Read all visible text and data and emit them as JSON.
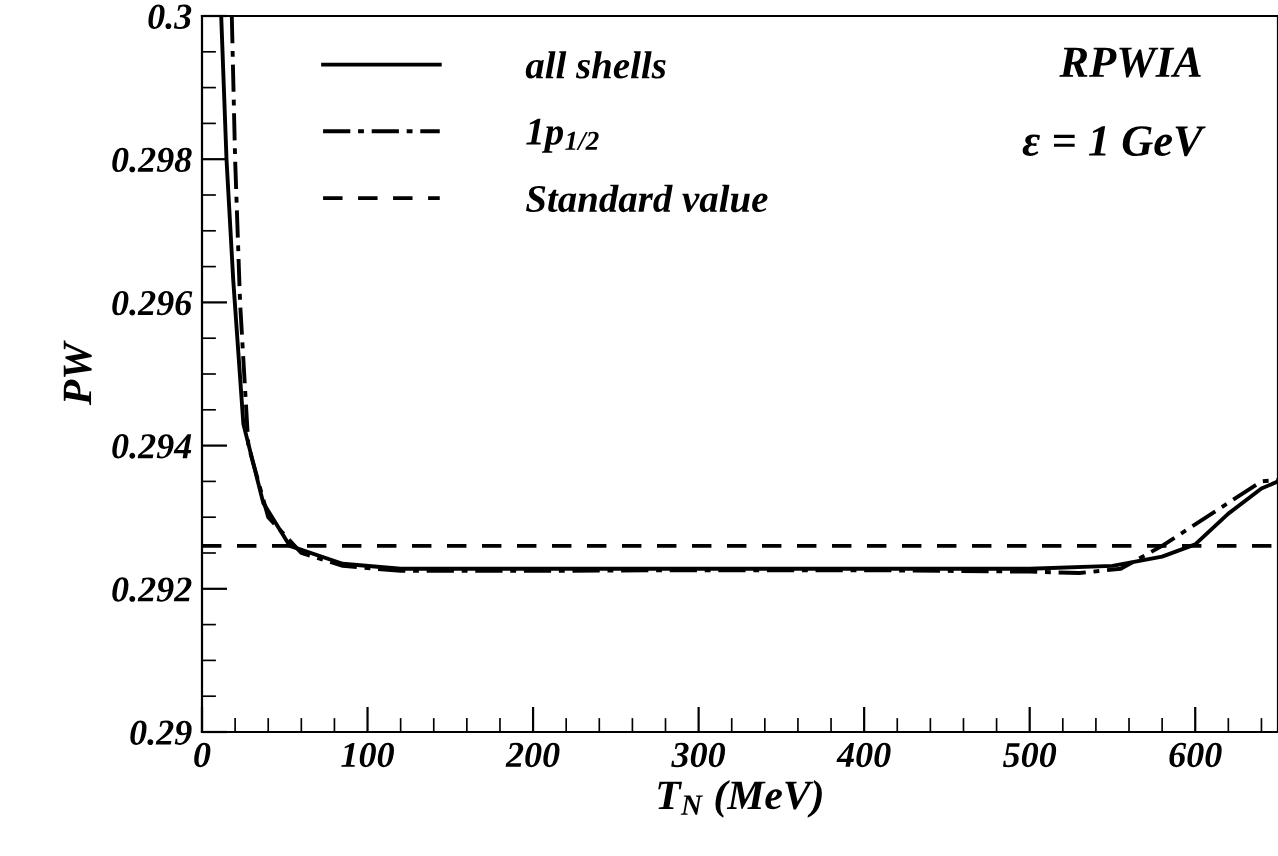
{
  "chart_data": {
    "type": "line",
    "xlabel": "T$_{N}$ (MeV)",
    "ylabel": "PW",
    "xlim": [
      0,
      650
    ],
    "ylim": [
      0.29,
      0.3
    ],
    "xticks": [
      0,
      100,
      200,
      300,
      400,
      500,
      600
    ],
    "yticks": [
      0.29,
      0.292,
      0.294,
      0.296,
      0.298,
      0.3
    ],
    "grid": false,
    "legend": "top left",
    "marker": "none",
    "annotations": [
      "RPWIA",
      "ε = 1 GeV"
    ],
    "series": [
      {
        "name": "all shells",
        "color": "#000000",
        "line_style": "solid",
        "x": [
          11.6,
          14.8,
          18.9,
          25,
          37,
          53,
          85,
          120,
          200,
          300,
          400,
          500,
          550,
          580,
          600,
          620,
          640,
          650
        ],
        "values": [
          0.3,
          0.298,
          0.2963,
          0.2943,
          0.2932,
          0.2926,
          0.29235,
          0.29228,
          0.29228,
          0.29228,
          0.29228,
          0.29228,
          0.29232,
          0.29245,
          0.29262,
          0.29305,
          0.2934,
          0.2935
        ]
      },
      {
        "name": "1p$_{1/2}$",
        "color": "#000000",
        "line_style": "dashdot",
        "x": [
          18,
          20,
          23,
          28,
          40,
          60,
          85,
          120,
          200,
          300,
          400,
          500,
          530,
          555,
          580,
          600,
          620,
          640,
          650
        ],
        "values": [
          0.3,
          0.298,
          0.296,
          0.294,
          0.293,
          0.2925,
          0.29232,
          0.29225,
          0.29225,
          0.29226,
          0.29226,
          0.29224,
          0.29222,
          0.29228,
          0.2926,
          0.2929,
          0.2932,
          0.2935,
          0.29352
        ]
      },
      {
        "name": "Standard value",
        "color": "#000000",
        "line_style": "dashed",
        "x": [
          0,
          650
        ],
        "values": [
          0.2926,
          0.2926
        ]
      }
    ]
  }
}
